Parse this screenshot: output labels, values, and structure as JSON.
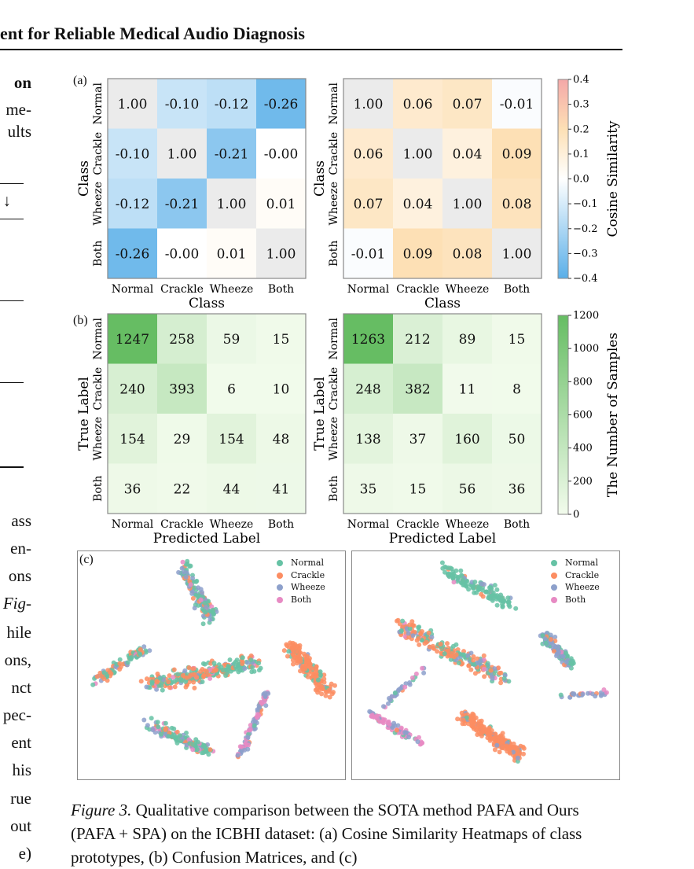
{
  "header": {
    "running_title": "ent for Reliable Medical Audio Diagnosis"
  },
  "left_column_fragments": [
    {
      "text": "on",
      "bold": true
    },
    {
      "text": "me-"
    },
    {
      "text": "ults"
    },
    {
      "text": "↓"
    },
    {
      "text": "ass"
    },
    {
      "text": "en-"
    },
    {
      "text": "ons"
    },
    {
      "text": "Fig-",
      "italic": true
    },
    {
      "text": "hile"
    },
    {
      "text": "ons,"
    },
    {
      "text": "nct"
    },
    {
      "text": "pec-"
    },
    {
      "text": "ent"
    },
    {
      "text": "his"
    },
    {
      "text": "rue"
    },
    {
      "text": "out"
    },
    {
      "text": "e)"
    }
  ],
  "figure": {
    "panel_a_label": "(a)",
    "panel_b_label": "(b)",
    "panel_c_label": "(c)",
    "classes": [
      "Normal",
      "Crackle",
      "Wheeze",
      "Both"
    ],
    "colors": {
      "blue_end": "#5aafe8",
      "red_end": "#f4a8a8",
      "orange_mid": "#fde0b5",
      "green_end": "#66bd63",
      "green_start": "#f2fbec",
      "normal": "#66c2a5",
      "crackle": "#fc8d62",
      "wheeze": "#8da0cb",
      "both": "#e78ac3"
    },
    "legend_labels": [
      "Normal",
      "Crackle",
      "Wheeze",
      "Both"
    ]
  },
  "chart_data": [
    {
      "type": "heatmap",
      "title": "",
      "xlabel": "Class",
      "ylabel": "Class",
      "x_categories": [
        "Normal",
        "Crackle",
        "Wheeze",
        "Both"
      ],
      "y_categories": [
        "Normal",
        "Crackle",
        "Wheeze",
        "Both"
      ],
      "values": [
        [
          "1.00",
          "-0.10",
          "-0.12",
          "-0.26"
        ],
        [
          "-0.10",
          "1.00",
          "-0.21",
          "-0.00"
        ],
        [
          "-0.12",
          "-0.21",
          "1.00",
          "0.01"
        ],
        [
          "-0.26",
          "-0.00",
          "0.01",
          "1.00"
        ]
      ],
      "vmin": -0.4,
      "vmax": 0.4
    },
    {
      "type": "heatmap",
      "title": "",
      "xlabel": "Class",
      "ylabel": "Class",
      "x_categories": [
        "Normal",
        "Crackle",
        "Wheeze",
        "Both"
      ],
      "y_categories": [
        "Normal",
        "Crackle",
        "Wheeze",
        "Both"
      ],
      "values": [
        [
          "1.00",
          "0.06",
          "0.07",
          "-0.01"
        ],
        [
          "0.06",
          "1.00",
          "0.04",
          "0.09"
        ],
        [
          "0.07",
          "0.04",
          "1.00",
          "0.08"
        ],
        [
          "-0.01",
          "0.09",
          "0.08",
          "1.00"
        ]
      ],
      "vmin": -0.4,
      "vmax": 0.4,
      "colorbar_label": "Cosine Similarity",
      "colorbar_ticks": [
        "0.4",
        "0.3",
        "0.2",
        "0.1",
        "0.0",
        "−0.1",
        "−0.2",
        "−0.3",
        "−0.4"
      ]
    },
    {
      "type": "heatmap",
      "title": "",
      "xlabel": "Predicted Label",
      "ylabel": "True Label",
      "x_categories": [
        "Normal",
        "Crackle",
        "Wheeze",
        "Both"
      ],
      "y_categories": [
        "Normal",
        "Crackle",
        "Wheeze",
        "Both"
      ],
      "values": [
        [
          "1247",
          "258",
          "59",
          "15"
        ],
        [
          "240",
          "393",
          "6",
          "10"
        ],
        [
          "154",
          "29",
          "154",
          "48"
        ],
        [
          "36",
          "22",
          "44",
          "41"
        ]
      ],
      "vmin": 0,
      "vmax": 1200
    },
    {
      "type": "heatmap",
      "title": "",
      "xlabel": "Predicted Label",
      "ylabel": "True Label",
      "x_categories": [
        "Normal",
        "Crackle",
        "Wheeze",
        "Both"
      ],
      "y_categories": [
        "Normal",
        "Crackle",
        "Wheeze",
        "Both"
      ],
      "values": [
        [
          "1263",
          "212",
          "89",
          "15"
        ],
        [
          "248",
          "382",
          "11",
          "8"
        ],
        [
          "138",
          "37",
          "160",
          "50"
        ],
        [
          "35",
          "15",
          "56",
          "36"
        ]
      ],
      "vmin": 0,
      "vmax": 1200,
      "colorbar_label": "The Number of Samples",
      "colorbar_ticks": [
        "1200",
        "1000",
        "800",
        "600",
        "400",
        "200",
        "0"
      ]
    },
    {
      "type": "scatter",
      "title": "",
      "series": [
        {
          "name": "Normal"
        },
        {
          "name": "Crackle"
        },
        {
          "name": "Wheeze"
        },
        {
          "name": "Both"
        }
      ]
    },
    {
      "type": "scatter",
      "title": "",
      "series": [
        {
          "name": "Normal"
        },
        {
          "name": "Crackle"
        },
        {
          "name": "Wheeze"
        },
        {
          "name": "Both"
        }
      ]
    }
  ],
  "caption": {
    "lead": "Figure 3.",
    "text": " Qualitative comparison between the SOTA method PAFA and Ours (PAFA + SPA) on the ICBHI dataset: (a) Cosine Similarity Heatmaps of class prototypes, (b) Confusion Matrices, and (c)"
  }
}
